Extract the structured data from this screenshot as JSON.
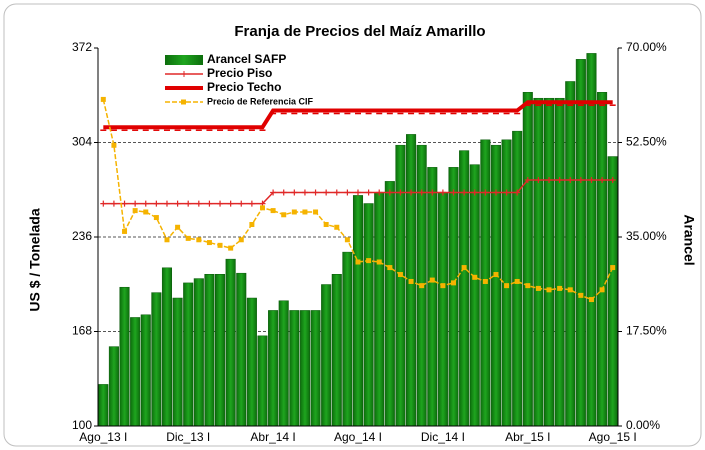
{
  "chart_data": {
    "type": "bar",
    "title": "Franja de Precios del Maíz Amarillo",
    "y_label": "US $ / Tonelada",
    "y2_label": "Arancel",
    "categories": [
      "Ago_13 I",
      null,
      null,
      null,
      null,
      null,
      null,
      null,
      "Dic_13 I",
      null,
      null,
      null,
      null,
      null,
      null,
      null,
      "Abr_14 I",
      null,
      null,
      null,
      null,
      null,
      null,
      null,
      "Ago_14 I",
      null,
      null,
      null,
      null,
      null,
      null,
      null,
      "Dic_14 I",
      null,
      null,
      null,
      null,
      null,
      null,
      null,
      "Abr_15 I",
      null,
      null,
      null,
      null,
      null,
      null,
      null,
      "Ago_15 I"
    ],
    "ylim": [
      100,
      372
    ],
    "yticks": [
      100,
      168,
      236,
      304,
      372
    ],
    "y2lim": [
      0,
      70
    ],
    "y2ticks": [
      {
        "value": 0,
        "label": "0.00%"
      },
      {
        "value": 17.5,
        "label": "17.50%"
      },
      {
        "value": 35,
        "label": "35.00%"
      },
      {
        "value": 52.5,
        "label": "52.50%"
      },
      {
        "value": 70,
        "label": "70.00%"
      }
    ],
    "grid": true,
    "series": [
      {
        "name": "Arancel SAFP",
        "type": "bar",
        "axis": "y2",
        "color": "#1fa51f",
        "values": [
          7.7,
          14.7,
          25.7,
          20.1,
          20.6,
          24.7,
          29.3,
          23.7,
          26.5,
          27.3,
          28.1,
          28.1,
          30.9,
          28.3,
          23.7,
          16.7,
          21.4,
          23.2,
          21.4,
          21.4,
          21.4,
          26.2,
          28.1,
          32.2,
          42.7,
          41.2,
          43.2,
          45.3,
          52.0,
          54.0,
          52.0,
          47.9,
          43.2,
          47.9,
          51.0,
          48.4,
          53.0,
          52.0,
          53.0,
          54.6,
          61.8,
          60.7,
          60.7,
          60.7,
          63.8,
          67.9,
          69.0,
          61.8,
          49.9
        ]
      },
      {
        "name": "Precio Piso",
        "type": "line",
        "marker": "plus",
        "color": "#e02828",
        "values": [
          260,
          260,
          260,
          260,
          260,
          260,
          260,
          260,
          260,
          260,
          260,
          260,
          260,
          260,
          260,
          260,
          268,
          268,
          268,
          268,
          268,
          268,
          268,
          268,
          268,
          268,
          268,
          268,
          268,
          268,
          268,
          268,
          268,
          268,
          268,
          268,
          268,
          268,
          268,
          268,
          277,
          277,
          277,
          277,
          277,
          277,
          277,
          277,
          277
        ]
      },
      {
        "name": "Precio Techo",
        "type": "line",
        "marker": "dash",
        "color": "#e00000",
        "values": [
          315,
          315,
          315,
          315,
          315,
          315,
          315,
          315,
          315,
          315,
          315,
          315,
          315,
          315,
          315,
          315,
          327,
          327,
          327,
          327,
          327,
          327,
          327,
          327,
          327,
          327,
          327,
          327,
          327,
          327,
          327,
          327,
          327,
          327,
          327,
          327,
          327,
          327,
          327,
          327,
          333,
          333,
          333,
          333,
          333,
          333,
          333,
          333,
          333
        ]
      },
      {
        "name": "Precio de Referencia CIF",
        "type": "line",
        "marker": "square",
        "color": "#f5b300",
        "values": [
          335,
          302,
          240,
          255,
          254,
          250,
          234,
          243,
          235,
          234,
          232,
          230,
          228,
          234,
          245,
          257,
          255,
          252,
          254,
          254,
          254,
          245,
          243,
          234,
          218,
          219,
          218,
          214,
          209,
          204,
          201,
          205,
          201,
          203,
          214,
          207,
          204,
          209,
          201,
          204,
          201,
          199,
          198,
          199,
          198,
          194,
          191,
          198,
          214
        ]
      }
    ]
  }
}
